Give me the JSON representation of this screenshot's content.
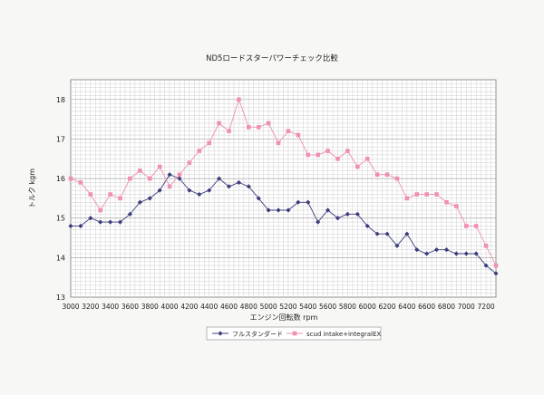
{
  "chart_data": {
    "type": "line",
    "title": "ND5ロードスターパワーチェック比較",
    "xlabel": "エンジン回転数 rpm",
    "ylabel": "トルク kgm",
    "xlim": [
      3000,
      7300
    ],
    "ylim": [
      13,
      18.5
    ],
    "x_ticks": [
      3000,
      3200,
      3400,
      3600,
      3800,
      4000,
      4200,
      4400,
      4600,
      4800,
      5000,
      5200,
      5400,
      5600,
      5800,
      6000,
      6200,
      6400,
      6600,
      6800,
      7000,
      7200
    ],
    "y_ticks": [
      13,
      14,
      15,
      16,
      17,
      18
    ],
    "grid": true,
    "legend_position": "bottom",
    "x": [
      3000,
      3100,
      3200,
      3300,
      3400,
      3500,
      3600,
      3700,
      3800,
      3900,
      4000,
      4100,
      4200,
      4300,
      4400,
      4500,
      4600,
      4700,
      4800,
      4900,
      5000,
      5100,
      5200,
      5300,
      5400,
      5500,
      5600,
      5700,
      5800,
      5900,
      6000,
      6100,
      6200,
      6300,
      6400,
      6500,
      6600,
      6700,
      6800,
      6900,
      7000,
      7100,
      7200,
      7300
    ],
    "series": [
      {
        "name": "フルスタンダード",
        "color": "#3c3d7c",
        "marker": "diamond",
        "values": [
          14.8,
          14.8,
          15.0,
          14.9,
          14.9,
          14.9,
          15.1,
          15.4,
          15.5,
          15.7,
          16.1,
          16.0,
          15.7,
          15.6,
          15.7,
          16.0,
          15.8,
          15.9,
          15.8,
          15.5,
          15.2,
          15.2,
          15.2,
          15.4,
          15.4,
          14.9,
          15.2,
          15.0,
          15.1,
          15.1,
          14.8,
          14.6,
          14.6,
          14.3,
          14.6,
          14.2,
          14.1,
          14.2,
          14.2,
          14.1,
          14.1,
          14.1,
          13.8,
          13.6
        ]
      },
      {
        "name": "scud intake+integralEX",
        "color": "#ef8fb4",
        "marker": "square",
        "values": [
          16.0,
          15.9,
          15.6,
          15.2,
          15.6,
          15.5,
          16.0,
          16.2,
          16.0,
          16.3,
          15.8,
          16.1,
          16.4,
          16.7,
          16.9,
          17.4,
          17.2,
          18.0,
          17.3,
          17.3,
          17.4,
          16.9,
          17.2,
          17.1,
          16.6,
          16.6,
          16.7,
          16.5,
          16.7,
          16.3,
          16.5,
          16.1,
          16.1,
          16.0,
          15.5,
          15.6,
          15.6,
          15.6,
          15.4,
          15.3,
          14.8,
          14.8,
          14.3,
          13.8
        ]
      }
    ]
  }
}
